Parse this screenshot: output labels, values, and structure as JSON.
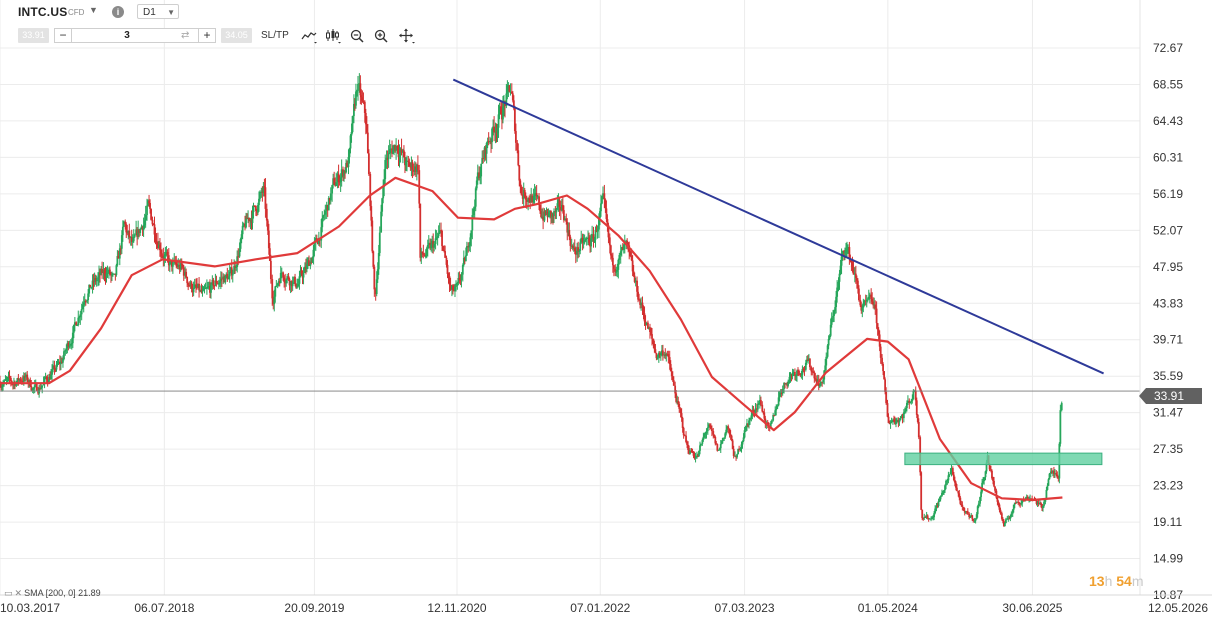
{
  "toolbar": {
    "symbol": "INTC.US",
    "instrument_type": "CFD",
    "timeframe": "D1",
    "sell_price": "33.91",
    "buy_price": "34.05",
    "volume": "3",
    "sltp_label": "SL/TP",
    "icons": [
      "line-chart-icon",
      "candlestick-icon",
      "zoom-out-icon",
      "zoom-in-icon",
      "crosshair-icon"
    ]
  },
  "indicator": {
    "label": "SMA [200, 0] 21.89"
  },
  "countdown": {
    "hours": "13",
    "h": "h",
    "minutes": "54",
    "m": "m"
  },
  "colors": {
    "up_candle": "#26a65b",
    "down_candle": "#d32f2f",
    "sma": "#e03a3a",
    "trendline": "#2e3a99",
    "support_zone": "#5fd0a0",
    "price_line": "#7a7a7a",
    "price_tag": "#616161"
  },
  "chart_data": {
    "type": "candlestick",
    "symbol": "INTC.US",
    "timeframe": "D1",
    "ylim": [
      10.87,
      72.67
    ],
    "y_ticks": [
      "72.67",
      "68.55",
      "64.43",
      "60.31",
      "56.19",
      "52.07",
      "47.95",
      "43.83",
      "39.71",
      "35.59",
      "31.47",
      "27.35",
      "23.23",
      "19.11",
      "14.99",
      "10.87"
    ],
    "x_ticks": [
      "10.03.2017",
      "06.07.2018",
      "20.09.2019",
      "12.11.2020",
      "07.01.2022",
      "07.03.2023",
      "01.05.2024",
      "30.06.2025",
      "12.05.2026"
    ],
    "x_range": [
      "2017-03-10",
      "2026-05-12"
    ],
    "current_price": 33.91,
    "price_path": [
      [
        "2017-03-10",
        35.0
      ],
      [
        "2017-04-15",
        34.8
      ],
      [
        "2017-05-20",
        35.5
      ],
      [
        "2017-06-25",
        34.0
      ],
      [
        "2017-07-30",
        35.5
      ],
      [
        "2017-09-05",
        37.0
      ],
      [
        "2017-10-15",
        41.0
      ],
      [
        "2017-11-15",
        45.0
      ],
      [
        "2017-12-15",
        46.2
      ],
      [
        "2018-01-20",
        47.5
      ],
      [
        "2018-02-10",
        46.0
      ],
      [
        "2018-03-10",
        52.5
      ],
      [
        "2018-04-05",
        50.0
      ],
      [
        "2018-05-20",
        54.5
      ],
      [
        "2018-06-15",
        51.5
      ],
      [
        "2018-07-20",
        48.0
      ],
      [
        "2018-08-25",
        47.8
      ],
      [
        "2018-09-20",
        46.0
      ],
      [
        "2018-10-30",
        44.5
      ],
      [
        "2018-12-15",
        46.5
      ],
      [
        "2019-01-20",
        47.0
      ],
      [
        "2019-03-01",
        52.5
      ],
      [
        "2019-04-25",
        56.5
      ],
      [
        "2019-05-20",
        44.5
      ],
      [
        "2019-06-15",
        47.5
      ],
      [
        "2019-08-01",
        46.0
      ],
      [
        "2019-09-01",
        48.0
      ],
      [
        "2019-10-01",
        51.0
      ],
      [
        "2019-11-15",
        57.0
      ],
      [
        "2019-12-31",
        60.0
      ],
      [
        "2020-01-24",
        68.5
      ],
      [
        "2020-02-20",
        64.0
      ],
      [
        "2020-03-16",
        44.0
      ],
      [
        "2020-04-15",
        60.0
      ],
      [
        "2020-05-20",
        62.0
      ],
      [
        "2020-06-20",
        59.0
      ],
      [
        "2020-07-22",
        59.5
      ],
      [
        "2020-07-27",
        49.0
      ],
      [
        "2020-08-20",
        49.5
      ],
      [
        "2020-09-25",
        51.5
      ],
      [
        "2020-10-25",
        45.0
      ],
      [
        "2020-11-12",
        45.0
      ],
      [
        "2020-12-10",
        49.0
      ],
      [
        "2021-01-10",
        57.5
      ],
      [
        "2021-02-10",
        62.0
      ],
      [
        "2021-04-20",
        68.0
      ],
      [
        "2021-05-20",
        56.5
      ],
      [
        "2021-06-20",
        56.0
      ],
      [
        "2021-07-20",
        54.0
      ],
      [
        "2021-08-20",
        53.5
      ],
      [
        "2021-09-20",
        54.5
      ],
      [
        "2021-10-22",
        49.5
      ],
      [
        "2021-11-20",
        50.5
      ],
      [
        "2021-12-20",
        51.0
      ],
      [
        "2022-01-07",
        54.0
      ],
      [
        "2022-01-15",
        55.0
      ],
      [
        "2022-02-10",
        48.0
      ],
      [
        "2022-03-25",
        50.0
      ],
      [
        "2022-04-15",
        46.5
      ],
      [
        "2022-05-20",
        42.0
      ],
      [
        "2022-06-20",
        38.0
      ],
      [
        "2022-07-20",
        38.5
      ],
      [
        "2022-08-10",
        34.5
      ],
      [
        "2022-09-20",
        27.5
      ],
      [
        "2022-10-20",
        26.5
      ],
      [
        "2022-11-20",
        30.0
      ],
      [
        "2022-12-20",
        27.0
      ],
      [
        "2023-01-15",
        30.0
      ],
      [
        "2023-02-10",
        26.0
      ],
      [
        "2023-03-07",
        29.5
      ],
      [
        "2023-04-20",
        33.0
      ],
      [
        "2023-05-20",
        29.0
      ],
      [
        "2023-06-20",
        34.0
      ],
      [
        "2023-07-25",
        36.0
      ],
      [
        "2023-09-10",
        37.0
      ],
      [
        "2023-10-20",
        34.5
      ],
      [
        "2023-11-20",
        42.0
      ],
      [
        "2023-12-27",
        50.5
      ],
      [
        "2024-01-20",
        48.0
      ],
      [
        "2024-02-15",
        43.0
      ],
      [
        "2024-03-20",
        44.0
      ],
      [
        "2024-04-10",
        38.5
      ],
      [
        "2024-05-01",
        30.5
      ],
      [
        "2024-06-10",
        31.0
      ],
      [
        "2024-07-20",
        34.0
      ],
      [
        "2024-08-01",
        29.0
      ],
      [
        "2024-08-08",
        20.0
      ],
      [
        "2024-09-05",
        19.5
      ],
      [
        "2024-10-10",
        22.5
      ],
      [
        "2024-11-05",
        25.0
      ],
      [
        "2024-12-10",
        20.0
      ],
      [
        "2025-01-15",
        19.5
      ],
      [
        "2025-02-18",
        26.5
      ],
      [
        "2025-03-10",
        23.0
      ],
      [
        "2025-04-08",
        18.5
      ],
      [
        "2025-05-15",
        21.5
      ],
      [
        "2025-06-30",
        22.0
      ],
      [
        "2025-07-30",
        20.5
      ],
      [
        "2025-08-18",
        24.5
      ],
      [
        "2025-09-01",
        24.5
      ],
      [
        "2025-09-17",
        24.5
      ],
      [
        "2025-09-18",
        31.0
      ],
      [
        "2025-09-26",
        33.91
      ]
    ],
    "sma200": [
      [
        "2017-03-10",
        34.8
      ],
      [
        "2017-08-01",
        34.8
      ],
      [
        "2017-10-01",
        36.2
      ],
      [
        "2018-01-01",
        41.0
      ],
      [
        "2018-04-01",
        47.0
      ],
      [
        "2018-07-01",
        48.8
      ],
      [
        "2018-12-01",
        48.0
      ],
      [
        "2019-04-01",
        48.8
      ],
      [
        "2019-08-01",
        49.5
      ],
      [
        "2019-12-01",
        52.5
      ],
      [
        "2020-03-01",
        56.0
      ],
      [
        "2020-05-15",
        58.0
      ],
      [
        "2020-09-01",
        56.5
      ],
      [
        "2020-11-15",
        53.5
      ],
      [
        "2021-03-01",
        53.3
      ],
      [
        "2021-05-01",
        54.5
      ],
      [
        "2021-07-01",
        55.0
      ],
      [
        "2021-10-01",
        56.0
      ],
      [
        "2021-12-01",
        54.5
      ],
      [
        "2022-03-01",
        51.5
      ],
      [
        "2022-06-01",
        47.5
      ],
      [
        "2022-09-01",
        42.0
      ],
      [
        "2022-12-01",
        35.5
      ],
      [
        "2023-03-01",
        32.5
      ],
      [
        "2023-05-01",
        30.5
      ],
      [
        "2023-06-01",
        29.5
      ],
      [
        "2023-08-01",
        31.5
      ],
      [
        "2023-11-01",
        36.0
      ],
      [
        "2024-03-01",
        39.8
      ],
      [
        "2024-05-01",
        39.5
      ],
      [
        "2024-07-01",
        37.5
      ],
      [
        "2024-10-01",
        28.5
      ],
      [
        "2025-01-01",
        23.5
      ],
      [
        "2025-04-01",
        21.8
      ],
      [
        "2025-07-01",
        21.6
      ],
      [
        "2025-09-26",
        21.89
      ]
    ],
    "trendline": {
      "start": [
        "2020-11-01",
        69.1
      ],
      "end": [
        "2026-01-25",
        35.9
      ]
    },
    "support_zone": {
      "x_from": "2024-06-20",
      "x_to": "2026-01-20",
      "y_low": 25.6,
      "y_high": 26.9
    },
    "grid": true
  }
}
